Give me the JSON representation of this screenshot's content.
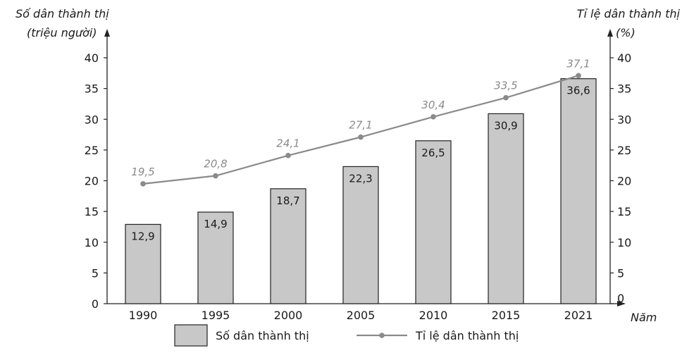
{
  "chart_data": {
    "type": "bar",
    "categories": [
      "1990",
      "1995",
      "2000",
      "2005",
      "2010",
      "2015",
      "2021"
    ],
    "series": [
      {
        "name": "Số dân thành thị",
        "type": "bar",
        "axis": "left",
        "values": [
          12.9,
          14.9,
          18.7,
          22.3,
          26.5,
          30.9,
          36.6
        ],
        "labels": [
          "12,9",
          "14,9",
          "18,7",
          "22,3",
          "26,5",
          "30,9",
          "36,6"
        ],
        "color": "#c8c8c8"
      },
      {
        "name": "Tỉ lệ dân thành thị",
        "type": "line",
        "axis": "right",
        "values": [
          19.5,
          20.8,
          24.1,
          27.1,
          30.4,
          33.5,
          37.1
        ],
        "labels": [
          "19,5",
          "20,8",
          "24,1",
          "27,1",
          "30,4",
          "33,5",
          "37,1"
        ],
        "color": "#8a8a8a"
      }
    ],
    "xlabel": "Năm",
    "ylabel_left": [
      "Số dân thành thị",
      "(triệu người)"
    ],
    "ylabel_right": [
      "Tỉ lệ dân thành thị",
      "(%)"
    ],
    "ylim_left": [
      0,
      40
    ],
    "ylim_right": [
      0,
      40
    ],
    "yticks": [
      0,
      5,
      10,
      15,
      20,
      25,
      30,
      35,
      40
    ],
    "grid": false,
    "legend_position": "bottom"
  }
}
